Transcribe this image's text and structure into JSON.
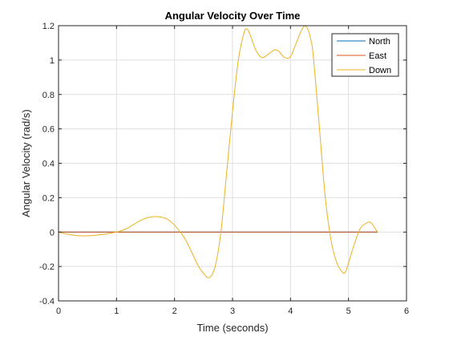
{
  "chart_data": {
    "type": "line",
    "title": "Angular Velocity Over Time",
    "xlabel": "Time (seconds)",
    "ylabel": "Angular Velocity (rad/s)",
    "xlim": [
      0,
      6
    ],
    "ylim": [
      -0.4,
      1.2
    ],
    "xticks": [
      0,
      1,
      2,
      3,
      4,
      5,
      6
    ],
    "yticks": [
      -0.4,
      -0.2,
      0,
      0.2,
      0.4,
      0.6,
      0.8,
      1,
      1.2
    ],
    "xtick_labels": [
      "0",
      "1",
      "2",
      "3",
      "4",
      "5",
      "6"
    ],
    "ytick_labels": [
      "-0.4",
      "-0.2",
      "0",
      "0.2",
      "0.4",
      "0.6",
      "0.8",
      "1",
      "1.2"
    ],
    "grid": true,
    "legend_position": "top-right",
    "series": [
      {
        "name": "North",
        "color": "#0072BD",
        "x": [
          0,
          5.5
        ],
        "y": [
          0,
          0
        ]
      },
      {
        "name": "East",
        "color": "#D95319",
        "x": [
          0,
          5.5
        ],
        "y": [
          0,
          0
        ]
      },
      {
        "name": "Down",
        "color": "#EDB120",
        "x": [
          0,
          0.1,
          0.2,
          0.3,
          0.4,
          0.5,
          0.6,
          0.7,
          0.8,
          0.9,
          1.0,
          1.1,
          1.2,
          1.3,
          1.4,
          1.5,
          1.6,
          1.7,
          1.8,
          1.9,
          2.0,
          2.1,
          2.2,
          2.3,
          2.4,
          2.5,
          2.6,
          2.7,
          2.8,
          2.9,
          3.0,
          3.1,
          3.2,
          3.25,
          3.3,
          3.4,
          3.5,
          3.6,
          3.7,
          3.75,
          3.8,
          3.9,
          4.0,
          4.1,
          4.2,
          4.27,
          4.35,
          4.4,
          4.5,
          4.6,
          4.7,
          4.8,
          4.9,
          4.95,
          5.0,
          5.1,
          5.2,
          5.3,
          5.35,
          5.4,
          5.5
        ],
        "y": [
          0,
          -0.008,
          -0.015,
          -0.02,
          -0.022,
          -0.022,
          -0.02,
          -0.016,
          -0.012,
          -0.006,
          0,
          0.01,
          0.025,
          0.045,
          0.065,
          0.08,
          0.088,
          0.09,
          0.085,
          0.07,
          0.04,
          0.0,
          -0.05,
          -0.12,
          -0.19,
          -0.24,
          -0.265,
          -0.2,
          0.0,
          0.35,
          0.7,
          1.0,
          1.16,
          1.18,
          1.15,
          1.06,
          1.015,
          1.03,
          1.055,
          1.06,
          1.05,
          1.015,
          1.02,
          1.1,
          1.18,
          1.195,
          1.12,
          1.0,
          0.6,
          0.2,
          -0.05,
          -0.18,
          -0.235,
          -0.23,
          -0.18,
          -0.07,
          0.02,
          0.05,
          0.058,
          0.05,
          0.0
        ]
      }
    ]
  }
}
